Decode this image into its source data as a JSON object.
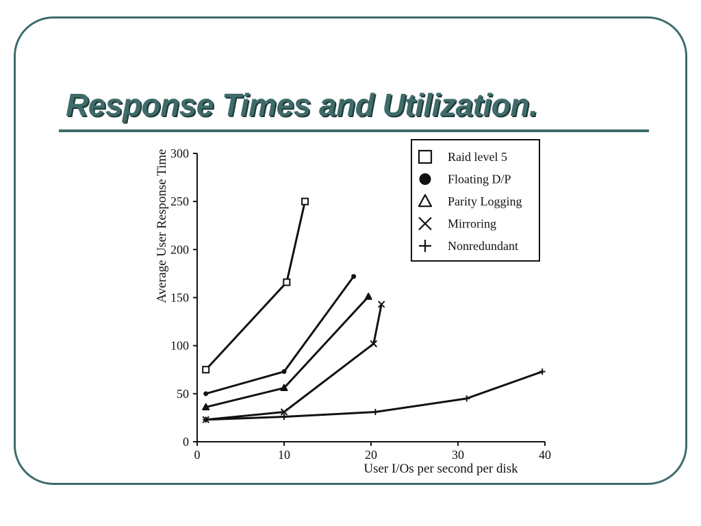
{
  "slide": {
    "title": "Response Times and Utilization."
  },
  "colors": {
    "frame": "#3d6b6b",
    "title": "#3f6b6a",
    "ink": "#111111"
  },
  "chart_data": {
    "type": "line",
    "xlabel": "User I/Os per second per disk",
    "ylabel": "Average User Response Time",
    "xlim": [
      0,
      40
    ],
    "ylim": [
      0,
      300
    ],
    "xticks": [
      0,
      10,
      20,
      30,
      40
    ],
    "yticks": [
      0,
      50,
      100,
      150,
      200,
      250,
      300
    ],
    "grid": false,
    "legend_position": "top-right",
    "series": [
      {
        "name": "Raid level 5",
        "marker": "square",
        "x": [
          1,
          10.3,
          12.4
        ],
        "y": [
          75,
          166,
          250
        ]
      },
      {
        "name": "Floating D/P",
        "marker": "circle",
        "x": [
          1,
          10,
          18
        ],
        "y": [
          50,
          73,
          172
        ]
      },
      {
        "name": "Parity Logging",
        "marker": "triangle",
        "x": [
          1,
          10,
          19.7
        ],
        "y": [
          36,
          56,
          151
        ]
      },
      {
        "name": "Mirroring",
        "marker": "x",
        "x": [
          1,
          10,
          20.3,
          21.2
        ],
        "y": [
          23,
          31,
          102,
          143
        ]
      },
      {
        "name": "Nonredundant",
        "marker": "plus",
        "x": [
          1,
          10,
          20.5,
          31,
          39.7
        ],
        "y": [
          23,
          26,
          31,
          45,
          73
        ]
      }
    ]
  }
}
